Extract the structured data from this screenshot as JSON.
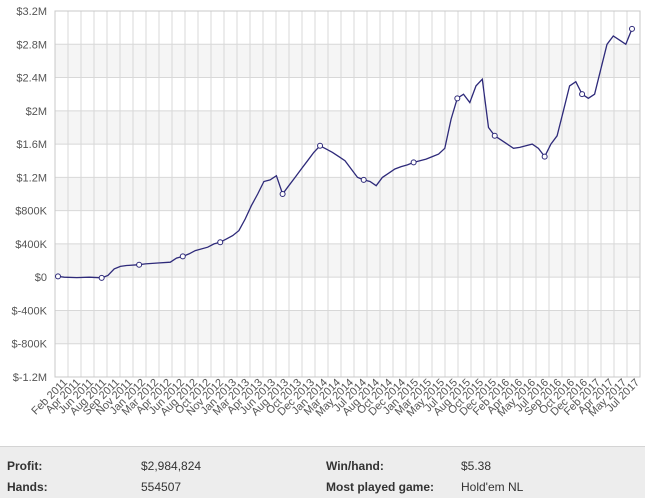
{
  "chart_data": {
    "type": "line",
    "series": [
      {
        "name": "",
        "color": "#2e2a7a"
      }
    ],
    "y_ticks": [
      "$-1.2M",
      "$-800K",
      "$-400K",
      "$0",
      "$400K",
      "$800K",
      "$1.2M",
      "$1.6M",
      "$2M",
      "$2.4M",
      "$2.8M",
      "$3.2M"
    ],
    "ylim": [
      -1200000,
      3200000
    ],
    "x_ticks": [
      "Feb 2011",
      "Apr 2011",
      "Jun 2011",
      "Aug 2011",
      "Sep 2011",
      "Nov 2011",
      "Jan 2012",
      "Mar 2012",
      "Apr 2012",
      "Jun 2012",
      "Aug 2012",
      "Oct 2012",
      "Nov 2012",
      "Jan 2013",
      "Mar 2013",
      "Apr 2013",
      "Jun 2013",
      "Aug 2013",
      "Oct 2013",
      "Dec 2013",
      "Jan 2014",
      "Mar 2014",
      "May 2014",
      "Jul 2014",
      "Aug 2014",
      "Oct 2014",
      "Dec 2014",
      "Jan 2015",
      "Mar 2015",
      "May 2015",
      "Jul 2015",
      "Aug 2015",
      "Oct 2015",
      "Dec 2015",
      "Feb 2016",
      "Apr 2016",
      "May 2016",
      "Jul 2016",
      "Sep 2016",
      "Oct 2016",
      "Dec 2016",
      "Feb 2017",
      "Apr 2017",
      "May 2017",
      "Jul 2017"
    ],
    "points": [
      [
        0,
        10000
      ],
      [
        1,
        0
      ],
      [
        3,
        -5000
      ],
      [
        5,
        0
      ],
      [
        7,
        -8000
      ],
      [
        8,
        20000
      ],
      [
        9,
        100000
      ],
      [
        10,
        130000
      ],
      [
        11,
        140000
      ],
      [
        13,
        150000
      ],
      [
        14,
        160000
      ],
      [
        16,
        170000
      ],
      [
        18,
        180000
      ],
      [
        19,
        230000
      ],
      [
        20,
        250000
      ],
      [
        21,
        280000
      ],
      [
        22,
        320000
      ],
      [
        24,
        360000
      ],
      [
        25,
        400000
      ],
      [
        26,
        420000
      ],
      [
        27,
        460000
      ],
      [
        28,
        500000
      ],
      [
        29,
        560000
      ],
      [
        30,
        700000
      ],
      [
        31,
        860000
      ],
      [
        32,
        1000000
      ],
      [
        33,
        1150000
      ],
      [
        34,
        1170000
      ],
      [
        35,
        1220000
      ],
      [
        36,
        1000000
      ],
      [
        37,
        1100000
      ],
      [
        38,
        1200000
      ],
      [
        39,
        1300000
      ],
      [
        40,
        1400000
      ],
      [
        41,
        1500000
      ],
      [
        42,
        1580000
      ],
      [
        43,
        1540000
      ],
      [
        44,
        1500000
      ],
      [
        45,
        1450000
      ],
      [
        46,
        1400000
      ],
      [
        47,
        1300000
      ],
      [
        48,
        1200000
      ],
      [
        49,
        1170000
      ],
      [
        50,
        1150000
      ],
      [
        51,
        1100000
      ],
      [
        52,
        1200000
      ],
      [
        53,
        1250000
      ],
      [
        54,
        1300000
      ],
      [
        55,
        1330000
      ],
      [
        56,
        1350000
      ],
      [
        57,
        1380000
      ],
      [
        58,
        1400000
      ],
      [
        59,
        1420000
      ],
      [
        60,
        1450000
      ],
      [
        61,
        1480000
      ],
      [
        62,
        1550000
      ],
      [
        63,
        1900000
      ],
      [
        64,
        2150000
      ],
      [
        65,
        2200000
      ],
      [
        66,
        2100000
      ],
      [
        67,
        2300000
      ],
      [
        68,
        2380000
      ],
      [
        69,
        1800000
      ],
      [
        70,
        1700000
      ],
      [
        71,
        1650000
      ],
      [
        72,
        1600000
      ],
      [
        73,
        1550000
      ],
      [
        74,
        1560000
      ],
      [
        75,
        1580000
      ],
      [
        76,
        1600000
      ],
      [
        77,
        1550000
      ],
      [
        78,
        1450000
      ],
      [
        79,
        1600000
      ],
      [
        80,
        1700000
      ],
      [
        81,
        2000000
      ],
      [
        82,
        2300000
      ],
      [
        83,
        2350000
      ],
      [
        84,
        2200000
      ],
      [
        85,
        2150000
      ],
      [
        86,
        2200000
      ],
      [
        87,
        2500000
      ],
      [
        88,
        2800000
      ],
      [
        89,
        2900000
      ],
      [
        90,
        2850000
      ],
      [
        91,
        2800000
      ],
      [
        92,
        2984824
      ]
    ],
    "markers": [
      0,
      7,
      13,
      20,
      26,
      36,
      42,
      49,
      57,
      64,
      70,
      78,
      84,
      92
    ],
    "grid": true
  },
  "stats": [
    {
      "label": "Profit:",
      "value": "$2,984,824"
    },
    {
      "label": "Win/hand:",
      "value": "$5.38"
    },
    {
      "label": "Hands:",
      "value": "554507"
    },
    {
      "label": "Most played game:",
      "value": "Hold'em NL"
    }
  ]
}
